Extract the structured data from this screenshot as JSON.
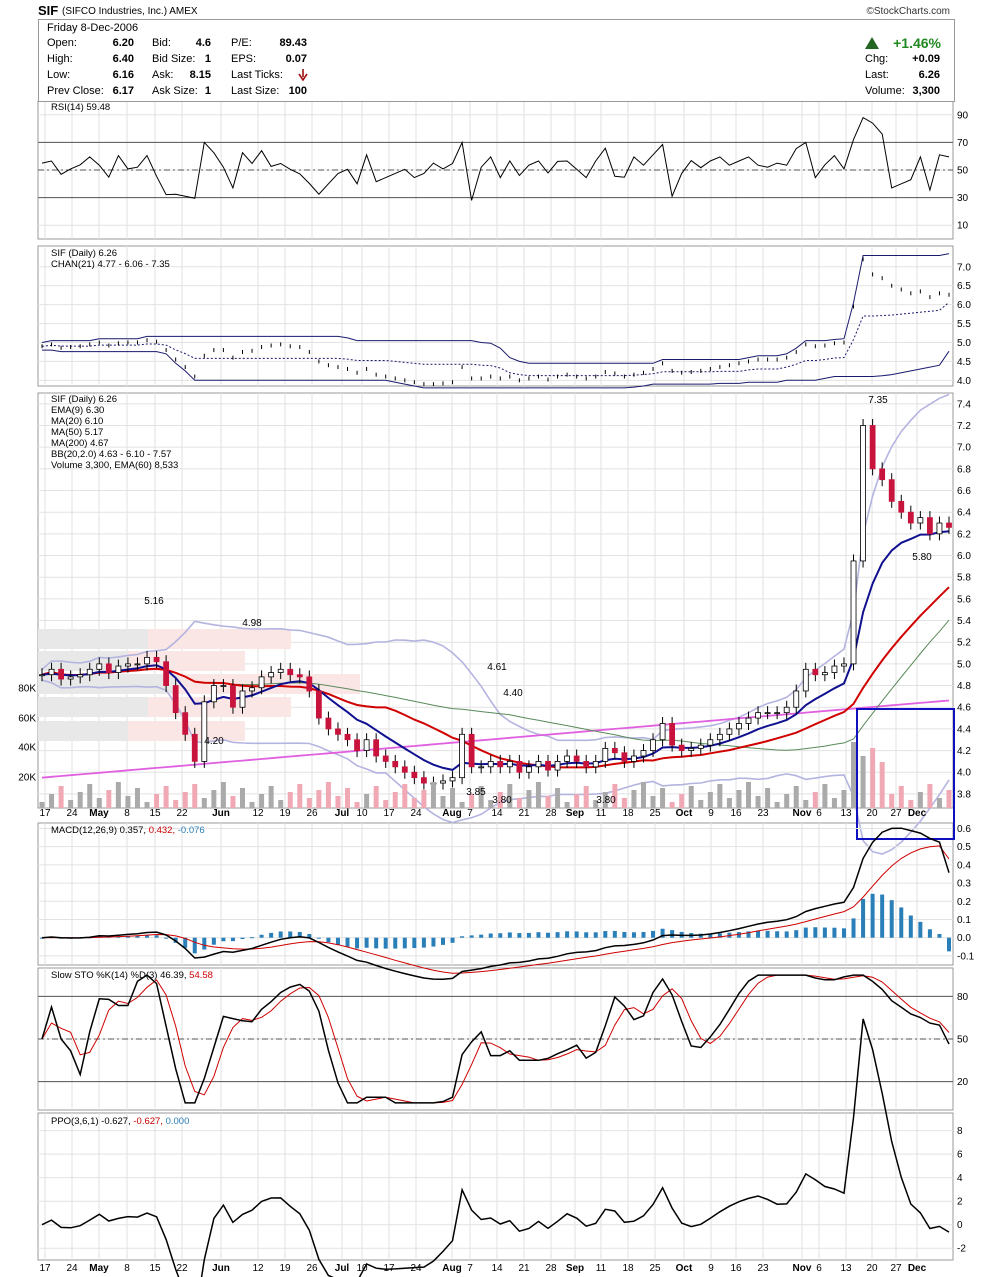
{
  "header": {
    "ticker": "SIF",
    "company": "(SIFCO Industries, Inc.)",
    "exchange": "AMEX",
    "credit": "©StockCharts.com",
    "date": "Friday  8-Dec-2006"
  },
  "quote": {
    "open_label": "Open:",
    "open": "6.20",
    "high_label": "High:",
    "high": "6.40",
    "low_label": "Low:",
    "low": "6.16",
    "prev_label": "Prev Close:",
    "prev": "6.17",
    "bid_label": "Bid:",
    "bid": "4.6",
    "bidsize_label": "Bid Size:",
    "bidsize": "1",
    "ask_label": "Ask:",
    "ask": "8.15",
    "asksize_label": "Ask Size:",
    "asksize": "1",
    "pe_label": "P/E:",
    "pe": "89.43",
    "eps_label": "EPS:",
    "eps": "0.07",
    "lastticks_label": "Last Ticks:",
    "lastsize_label": "Last Size:",
    "lastsize": "100",
    "chgpct": "+1.46%",
    "chg_label": "Chg:",
    "chg": "+0.09",
    "last_label": "Last:",
    "last": "6.26",
    "volume_label": "Volume:",
    "volume": "3,300",
    "up_color": "#228822"
  },
  "legends": {
    "rsi": "RSI(14) 59.48",
    "chan_title": "SIF (Daily) 6.26",
    "chan": "CHAN(21) 4.77 - 6.06 - 7.35",
    "main_title": "SIF (Daily) 6.26",
    "ema9": "EMA(9) 6.30",
    "ma20": "MA(20) 6.10",
    "ma50": "MA(50) 5.17",
    "ma200": "MA(200) 4.67",
    "bb": "BB(20,2.0) 4.63 - 6.10 - 7.57",
    "vol": "Volume 3,300, EMA(60) 8,533",
    "macd_a": "MACD(12,26,9) 0.357,",
    "macd_b": "0.432,",
    "macd_c": "-0.076",
    "sto_a": "Slow STO %K(14) %D(3) 46.39,",
    "sto_b": "54.58",
    "ppo_a": "PPO(3,6,1) -0.627,",
    "ppo_b": "-0.627,",
    "ppo_c": "0.000"
  },
  "chart_data": {
    "type": "candlestick",
    "x_labels": [
      "17",
      "24",
      "May",
      "8",
      "15",
      "22",
      "Jun",
      "12",
      "19",
      "26",
      "Jul",
      "10",
      "17",
      "24",
      "Aug",
      "7",
      "14",
      "21",
      "28",
      "Sep",
      "11",
      "18",
      "25",
      "Oct",
      "9",
      "16",
      "23",
      "Nov",
      "6",
      "13",
      "20",
      "27",
      "Dec"
    ],
    "price_ticks": [
      3.8,
      4.0,
      4.2,
      4.4,
      4.6,
      4.8,
      5.0,
      5.2,
      5.4,
      5.6,
      5.8,
      6.0,
      6.2,
      6.4,
      6.6,
      6.8,
      7.0,
      7.2,
      7.4
    ],
    "volume_ticks": [
      "20K",
      "40K",
      "60K",
      "80K"
    ],
    "annotations": [
      "5.16",
      "4.98",
      "4.20",
      "4.61",
      "4.40",
      "3.85",
      "3.80",
      "3.80",
      "7.35",
      "5.80"
    ],
    "close": [
      4.9,
      4.95,
      4.86,
      4.88,
      4.9,
      4.95,
      5.0,
      4.92,
      4.98,
      5.0,
      5.0,
      5.06,
      5.02,
      4.8,
      4.55,
      4.35,
      4.1,
      4.65,
      4.8,
      4.8,
      4.6,
      4.75,
      4.78,
      4.88,
      4.92,
      4.95,
      4.9,
      4.88,
      4.75,
      4.5,
      4.4,
      4.35,
      4.3,
      4.2,
      4.3,
      4.15,
      4.1,
      4.05,
      4.0,
      3.95,
      3.9,
      3.9,
      3.92,
      3.95,
      4.35,
      4.05,
      4.05,
      4.1,
      4.05,
      4.1,
      4.0,
      4.05,
      4.1,
      4.02,
      4.1,
      4.15,
      4.1,
      4.05,
      4.1,
      4.22,
      4.18,
      4.1,
      4.15,
      4.2,
      4.3,
      4.45,
      4.25,
      4.2,
      4.22,
      4.25,
      4.3,
      4.35,
      4.4,
      4.45,
      4.5,
      4.55,
      4.55,
      4.55,
      4.6,
      4.75,
      4.95,
      4.9,
      4.92,
      4.98,
      5.0,
      5.95,
      7.2,
      6.8,
      6.7,
      6.5,
      6.4,
      6.3,
      6.35,
      6.2,
      6.3,
      6.26
    ],
    "rsi": {
      "ticks": [
        10,
        30,
        50,
        70,
        90
      ],
      "last": 59.48
    },
    "chan": {
      "ticks": [
        4.0,
        4.5,
        5.0,
        5.5,
        6.0,
        6.5,
        7.0
      ],
      "upper": 7.35,
      "middle": 6.06,
      "lower": 4.77
    },
    "macd": {
      "ticks": [
        -0.1,
        0.0,
        0.1,
        0.2,
        0.3,
        0.4,
        0.5,
        0.6
      ],
      "macd": 0.357,
      "signal": 0.432,
      "hist": -0.076
    },
    "sto": {
      "ticks": [
        20,
        50,
        80
      ],
      "k": 46.39,
      "d": 54.58
    },
    "ppo": {
      "ticks": [
        -2,
        0,
        2,
        4,
        6,
        8
      ],
      "ppo": -0.627,
      "signal": -0.627,
      "hist": 0.0
    }
  }
}
